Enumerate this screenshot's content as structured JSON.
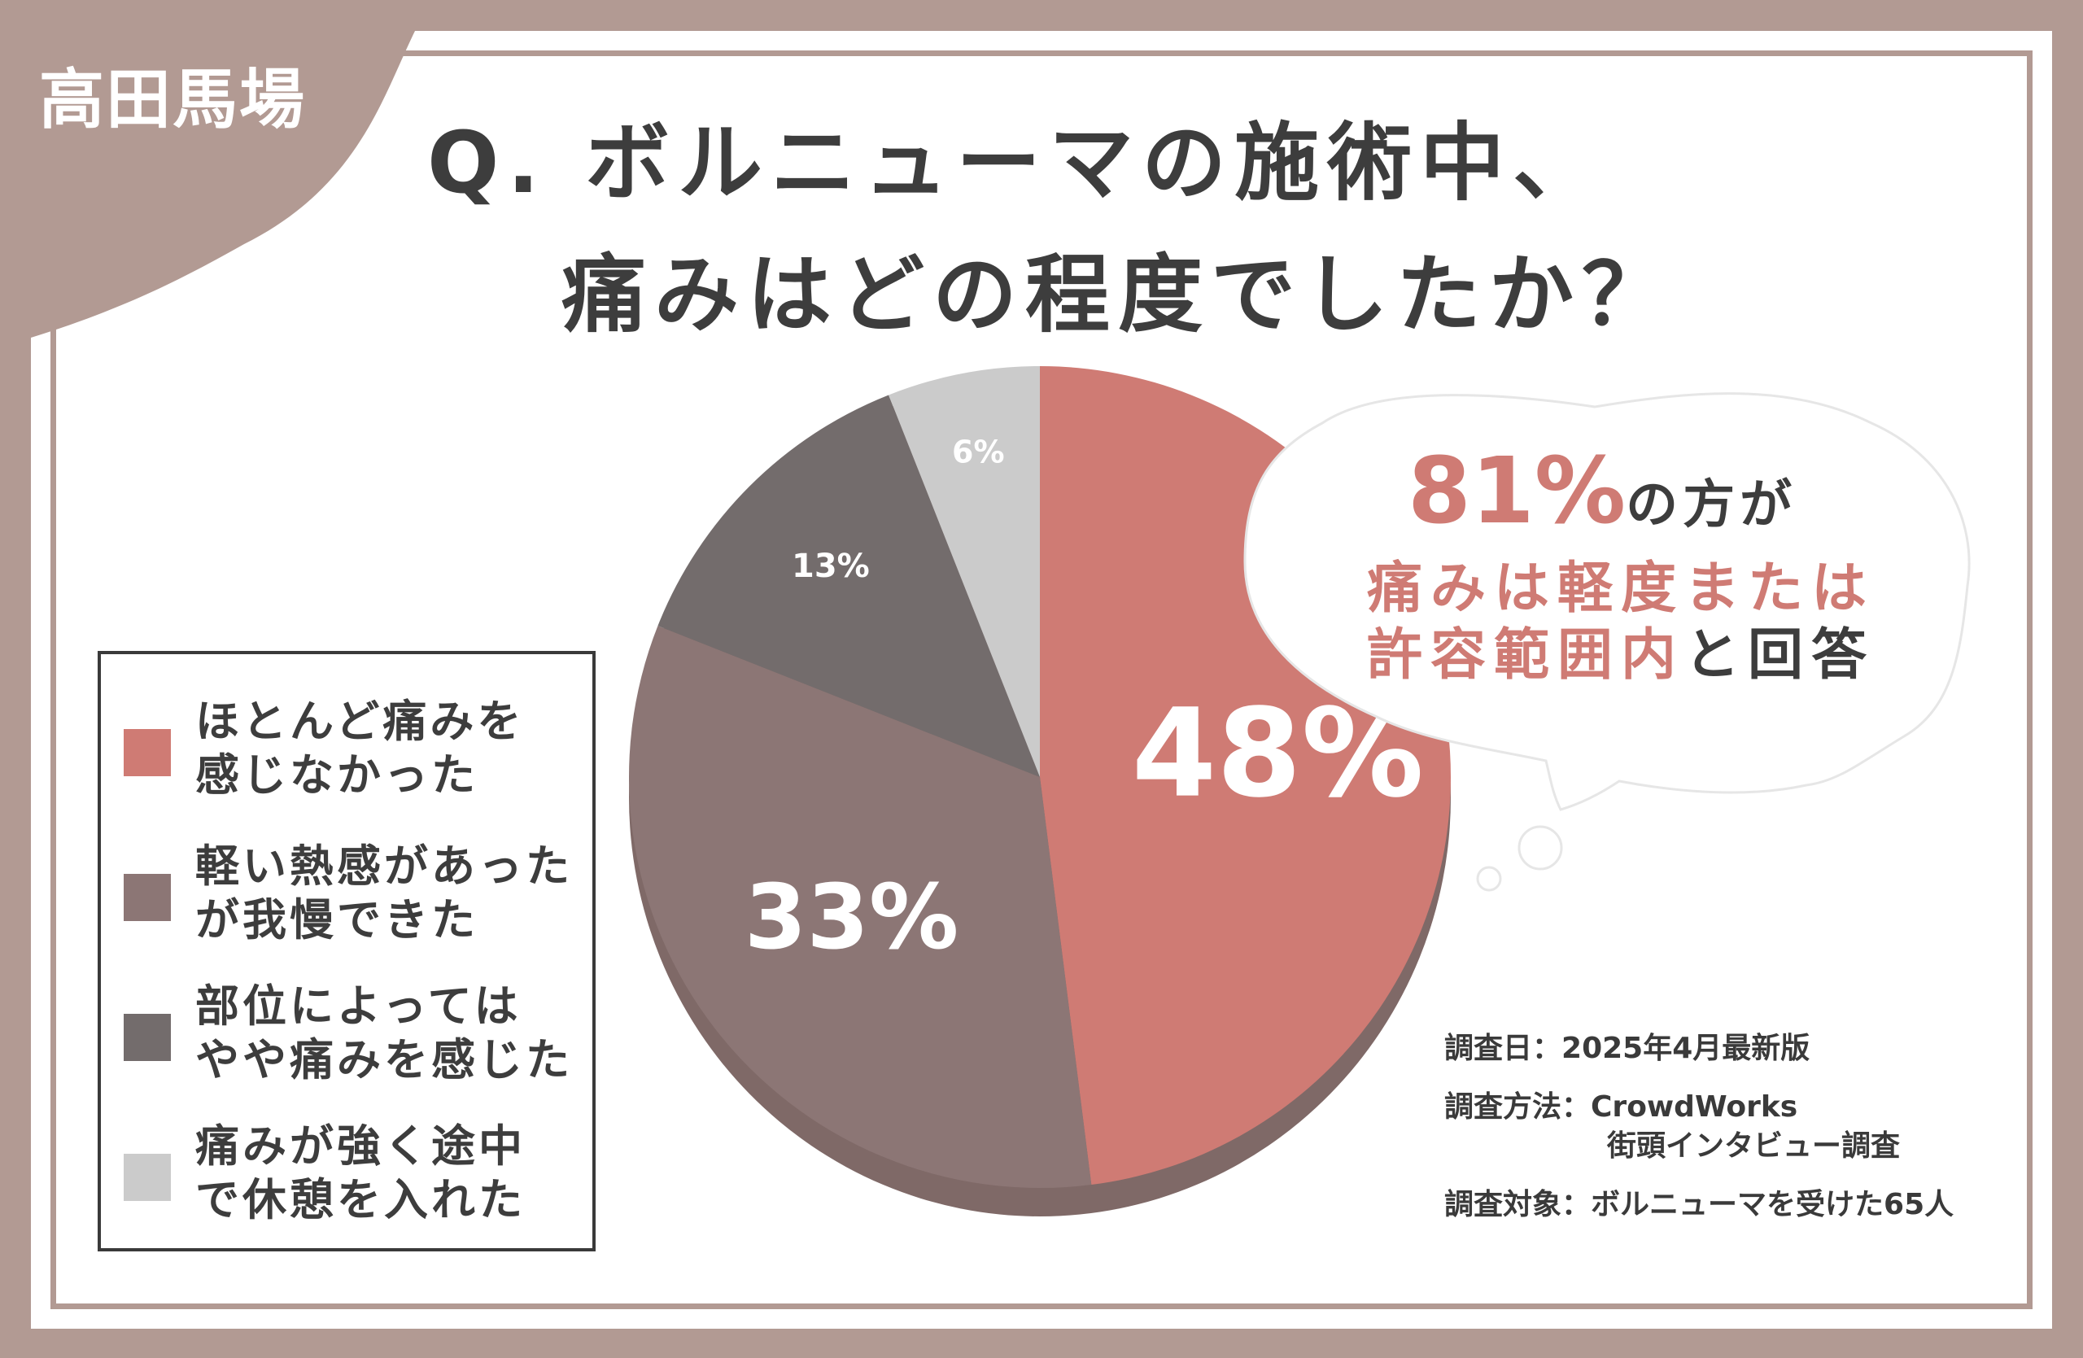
{
  "location_tag": "高田馬場",
  "title": {
    "line1": "Q. ボルニューマの施術中、",
    "line2": "痛みはどの程度でしたか？"
  },
  "colors": {
    "background": "#b29a93",
    "slice_no_pain": "#cf7b74",
    "slice_mild_heat": "#8c7675",
    "slice_some_pain": "#736c6c",
    "slice_strong_pain": "#cbcbcb",
    "accent_text": "#cf7b74",
    "dark_text": "#3d3d3d"
  },
  "chart_data": {
    "type": "pie",
    "title": "Q. ボルニューマの施術中、痛みはどの程度でしたか？",
    "slices": [
      {
        "label": "ほとんど痛みを感じなかった",
        "value": 48,
        "display": "48%",
        "color": "#cf7b74"
      },
      {
        "label": "軽い熱感があったが我慢できた",
        "value": 33,
        "display": "33%",
        "color": "#8c7675"
      },
      {
        "label": "部位によってはやや痛みを感じた",
        "value": 13,
        "display": "13%",
        "color": "#736c6c"
      },
      {
        "label": "痛みが強く途中で休憩を入れた",
        "value": 6,
        "display": "6%",
        "color": "#cbcbcb"
      }
    ],
    "start": "12 o'clock",
    "direction": "clockwise",
    "legend_position": "left"
  },
  "legend": {
    "items": [
      {
        "line1": "ほとんど痛みを",
        "line2": "感じなかった"
      },
      {
        "line1": "軽い熱感があった",
        "line2": "が我慢できた"
      },
      {
        "line1": "部位によっては",
        "line2": "やや痛みを感じた"
      },
      {
        "line1": "痛みが強く途中",
        "line2": "で休憩を入れた"
      }
    ]
  },
  "bubble": {
    "pct": "81%",
    "pct_suffix": "の方が",
    "line2": "痛みは軽度または",
    "line3_accent": "許容範囲内",
    "line3_rest": "と回答"
  },
  "survey": {
    "date_label": "調査日：",
    "date_value": "2025年4月最新版",
    "method_label": "調査方法：",
    "method_value1": "CrowdWorks",
    "method_value2": "街頭インタビュー調査",
    "target_label": "調査対象：",
    "target_value": "ボルニューマを受けた65人"
  }
}
